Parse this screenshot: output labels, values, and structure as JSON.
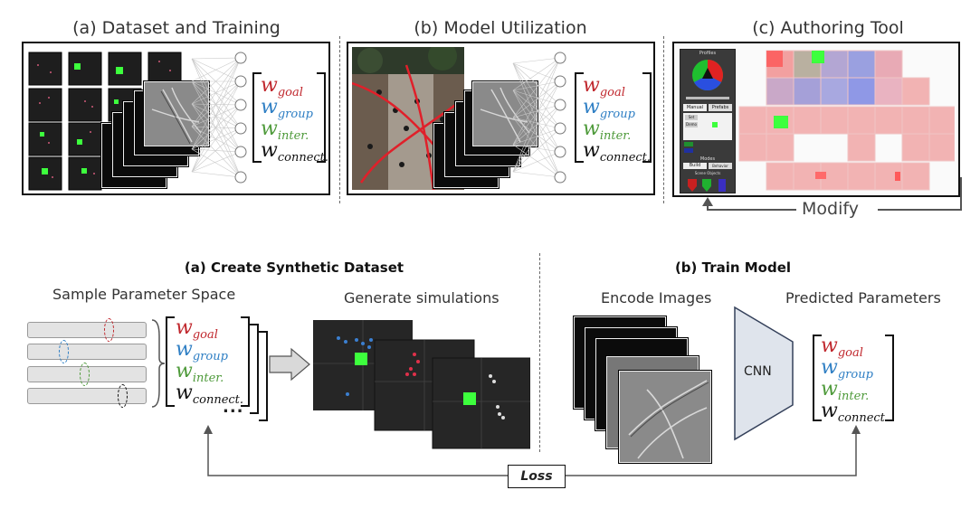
{
  "top": {
    "panel_a_title": "(a) Dataset and Training",
    "panel_b_title": "(b) Model Utilization",
    "panel_c_title": "(c) Authoring Tool",
    "modify_label": "Modify"
  },
  "weights": {
    "goal": "w",
    "goal_sub": "goal",
    "group": "w",
    "group_sub": "group",
    "inter": "w",
    "inter_sub": "inter.",
    "connect": "w",
    "connect_sub": "connect.",
    "ellipsis": "..."
  },
  "colors": {
    "goal": "#c0272d",
    "group": "#2f7fc4",
    "inter": "#4e9a3a",
    "connect": "#111111",
    "green_square": "#3dff3d",
    "tile_red": "#f2b3b3",
    "tile_blue": "#8b8fd6"
  },
  "bottom": {
    "section_a_title": "(a) Create Synthetic Dataset",
    "section_b_title": "(b) Train Model",
    "sample_label": "Sample Parameter Space",
    "generate_label": "Generate simulations",
    "encode_label": "Encode Images",
    "predicted_label": "Predicted Parameters",
    "cnn_label": "CNN",
    "loss_label": "Loss"
  },
  "tool_ui": {
    "profiles_label": "Profiles",
    "manual_tab": "Manual",
    "prefabs_tab": "Prefabs",
    "set_button": "Set",
    "demo_button": "Demo",
    "modes_label": "Modes",
    "build_button": "Build",
    "behavior_button": "Behavior",
    "scene_objects_label": "Scene Objects"
  }
}
